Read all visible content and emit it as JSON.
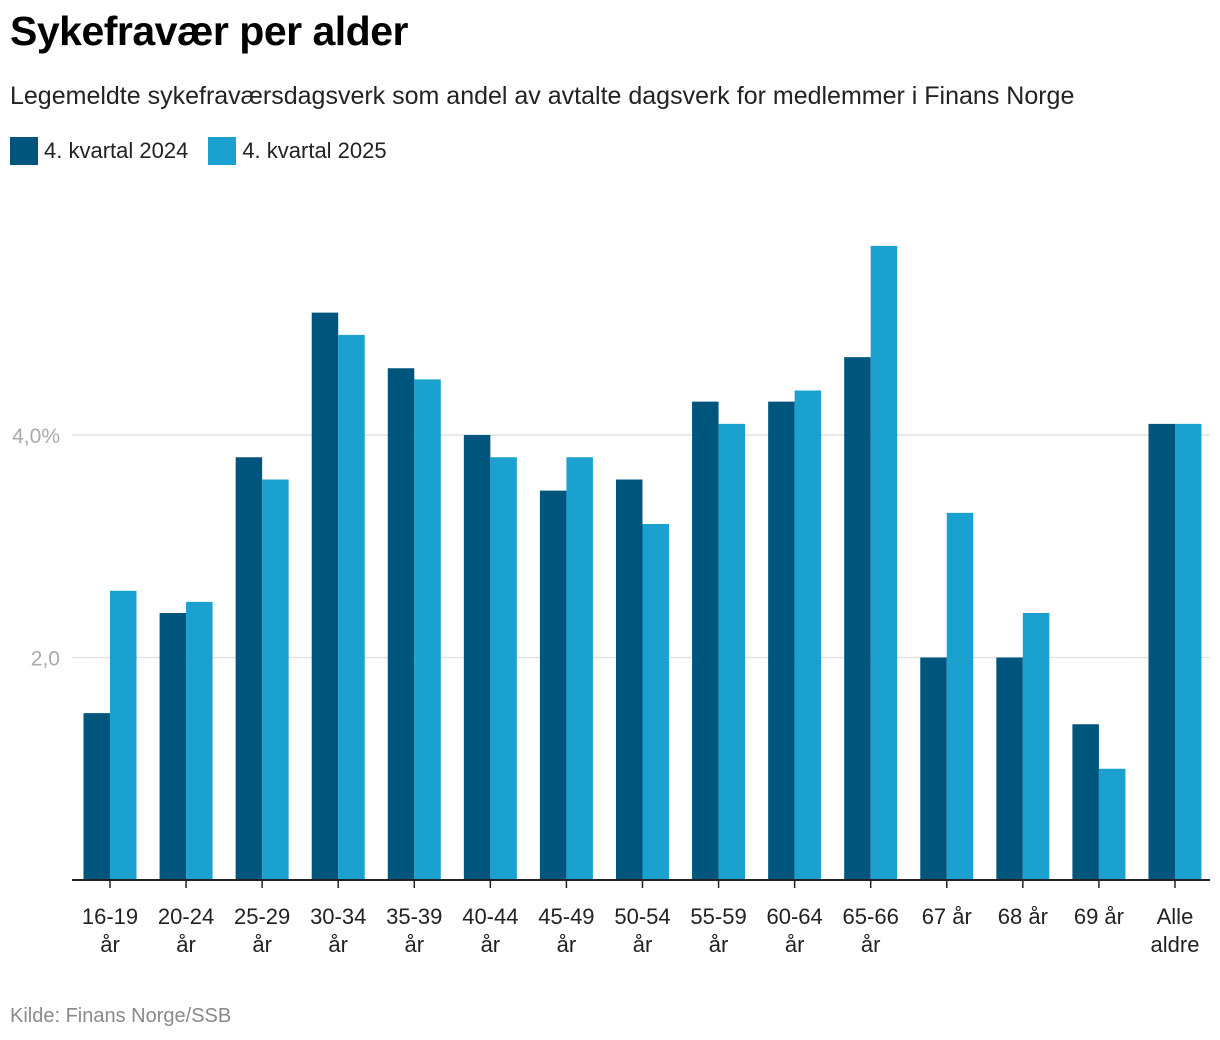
{
  "header": {
    "title": "Sykefravær per alder",
    "subtitle": "Legemeldte sykefraværsdagsverk som andel av avtalte dagsverk for medlemmer i Finans Norge"
  },
  "colors": {
    "series_2024": "#00557c",
    "series_2025": "#1aa1cf",
    "gridline": "#e2e2e2",
    "axis": "#222222",
    "tick_label": "#aaaaaa"
  },
  "legend": {
    "items": [
      {
        "label": "4. kvartal 2024",
        "color": "#00557c"
      },
      {
        "label": "4. kvartal 2025",
        "color": "#1aa1cf"
      }
    ]
  },
  "footer": {
    "source": "Kilde: Finans Norge/SSB"
  },
  "chart_data": {
    "type": "bar",
    "title": "Sykefravær per alder",
    "xlabel": "",
    "ylabel": "",
    "ylim": [
      0,
      5.7
    ],
    "yticks": [
      {
        "value": 2.0,
        "label": "2,0"
      },
      {
        "value": 4.0,
        "label": "4,0%"
      }
    ],
    "categories": [
      [
        "16-19",
        "år"
      ],
      [
        "20-24",
        "år"
      ],
      [
        "25-29",
        "år"
      ],
      [
        "30-34",
        "år"
      ],
      [
        "35-39",
        "år"
      ],
      [
        "40-44",
        "år"
      ],
      [
        "45-49",
        "år"
      ],
      [
        "50-54",
        "år"
      ],
      [
        "55-59",
        "år"
      ],
      [
        "60-64",
        "år"
      ],
      [
        "65-66",
        "år"
      ],
      [
        "67 år"
      ],
      [
        "68 år"
      ],
      [
        "69 år"
      ],
      [
        "Alle",
        "aldre"
      ]
    ],
    "series": [
      {
        "name": "4. kvartal 2024",
        "values": [
          1.5,
          2.4,
          3.8,
          5.1,
          4.6,
          4.0,
          3.5,
          3.6,
          4.3,
          4.3,
          4.7,
          2.0,
          2.0,
          1.4,
          4.1
        ]
      },
      {
        "name": "4. kvartal 2025",
        "values": [
          2.6,
          2.5,
          3.6,
          4.9,
          4.5,
          3.8,
          3.8,
          3.2,
          4.1,
          4.4,
          5.7,
          3.3,
          2.4,
          1.0,
          4.1
        ]
      }
    ]
  }
}
